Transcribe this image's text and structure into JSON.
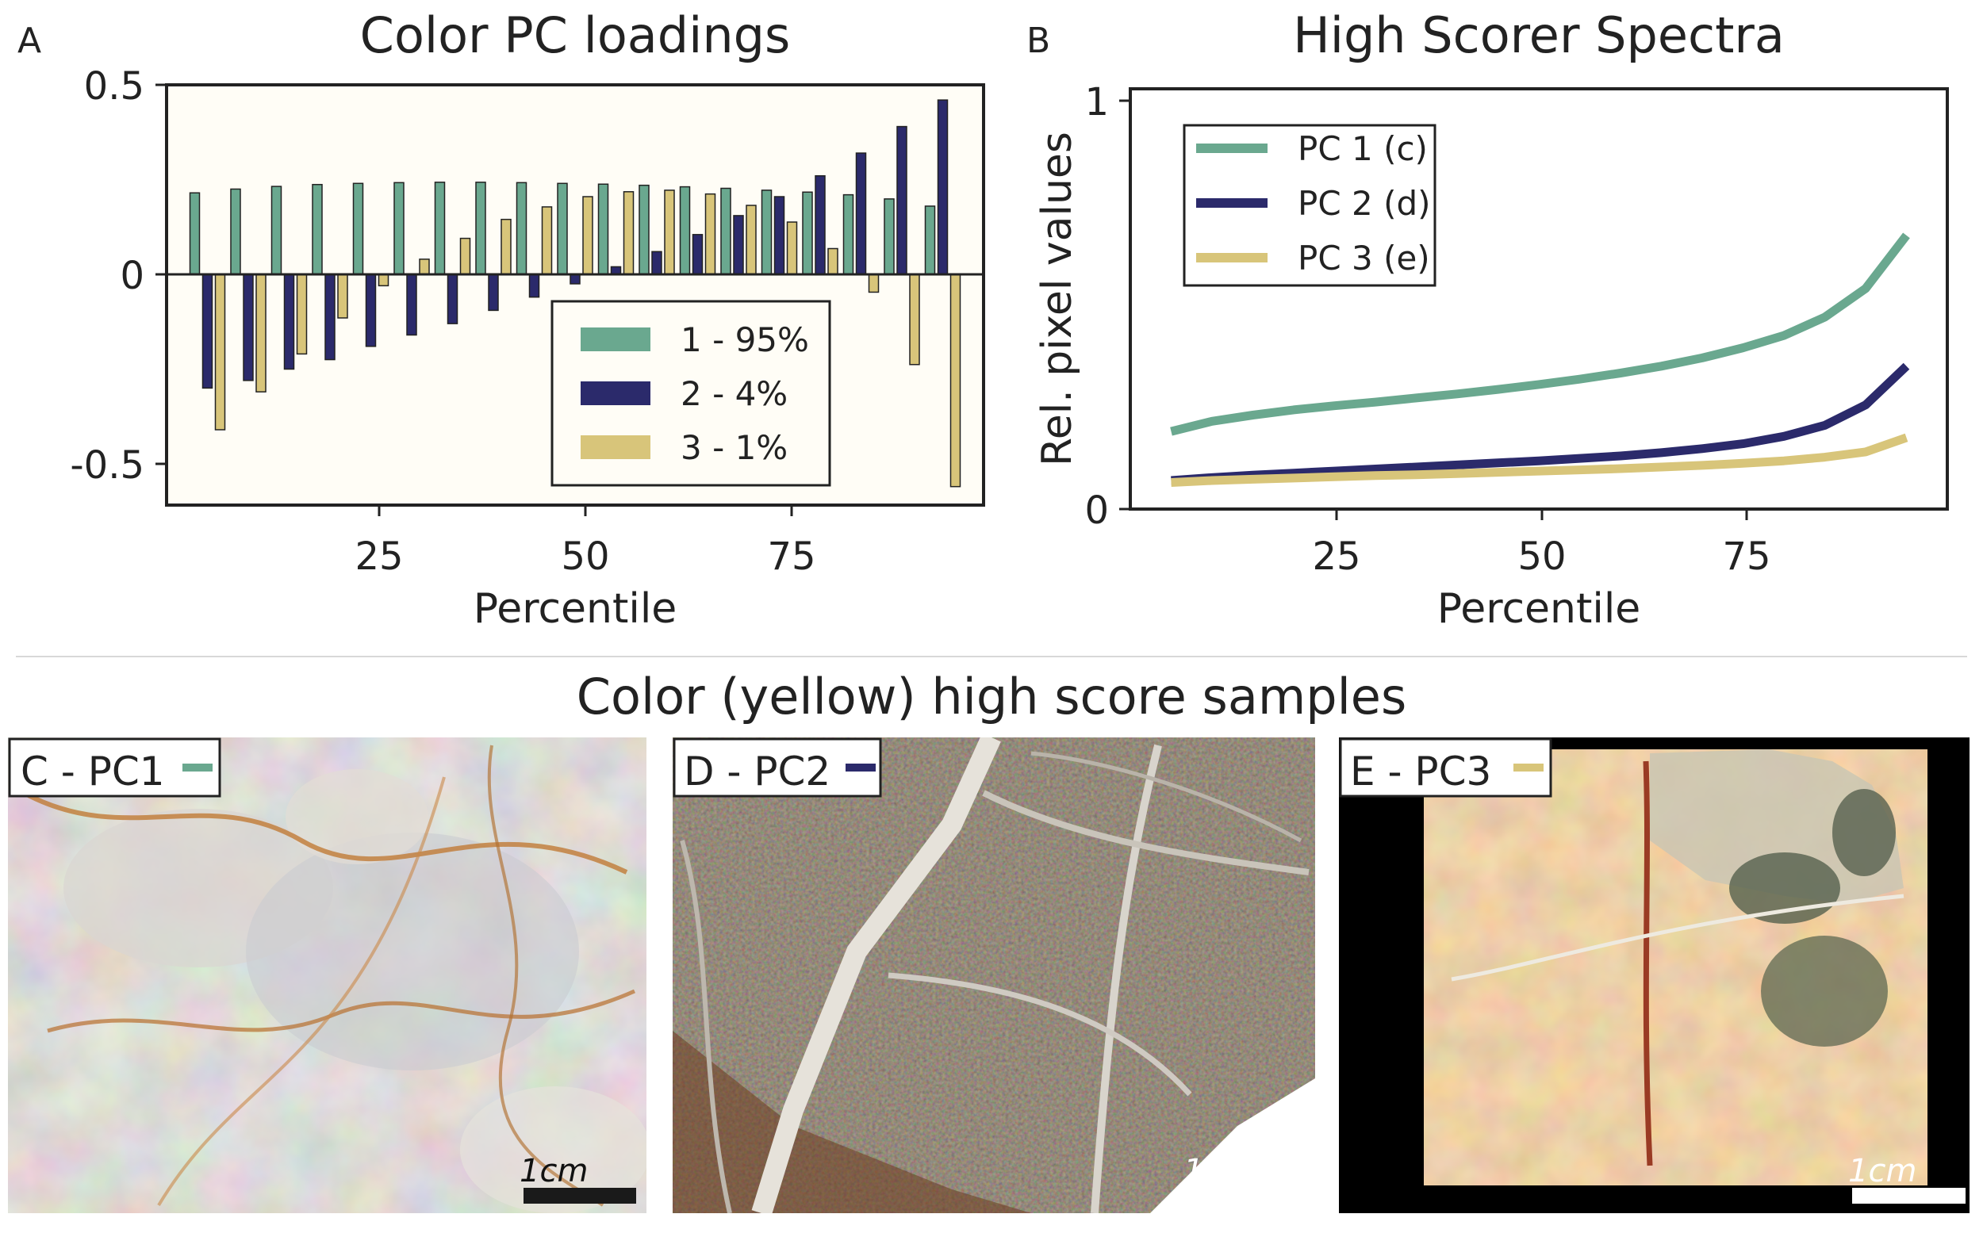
{
  "chart_data": [
    {
      "panel": "A",
      "type": "bar",
      "title": "Color PC loadings",
      "xlabel": "Percentile",
      "ylabel": "",
      "x": [
        5,
        10,
        15,
        20,
        25,
        30,
        35,
        40,
        45,
        50,
        55,
        60,
        65,
        70,
        75,
        80,
        85,
        90,
        95
      ],
      "xlim": [
        0,
        100
      ],
      "ylim": [
        -0.6,
        0.5
      ],
      "xticks": [
        "25",
        "50",
        "75"
      ],
      "yticks": [
        "0.5",
        "0",
        "-0.5"
      ],
      "legend_position": "lower-right",
      "series": [
        {
          "name": "1 - 95%",
          "color": "#6aa88f",
          "values": [
            0.215,
            0.225,
            0.232,
            0.237,
            0.24,
            0.242,
            0.243,
            0.243,
            0.242,
            0.24,
            0.238,
            0.235,
            0.231,
            0.227,
            0.222,
            0.217,
            0.21,
            0.199,
            0.18
          ]
        },
        {
          "name": "2 - 4%",
          "color": "#2b2a6b",
          "values": [
            -0.3,
            -0.28,
            -0.25,
            -0.225,
            -0.19,
            -0.16,
            -0.13,
            -0.095,
            -0.06,
            -0.025,
            0.02,
            0.06,
            0.105,
            0.155,
            0.205,
            0.26,
            0.32,
            0.39,
            0.46
          ]
        },
        {
          "name": "3 - 1%",
          "color": "#d8c57a",
          "values": [
            -0.41,
            -0.31,
            -0.21,
            -0.115,
            -0.03,
            0.04,
            0.095,
            0.145,
            0.178,
            0.205,
            0.218,
            0.222,
            0.212,
            0.182,
            0.138,
            0.068,
            -0.047,
            -0.238,
            -0.56
          ]
        }
      ]
    },
    {
      "panel": "B",
      "type": "line",
      "title": "High Scorer Spectra",
      "xlabel": "Percentile",
      "ylabel": "Rel. pixel values",
      "x": [
        5,
        10,
        15,
        20,
        25,
        30,
        35,
        40,
        45,
        50,
        55,
        60,
        65,
        70,
        75,
        80,
        85,
        90,
        95
      ],
      "xlim": [
        0,
        100
      ],
      "ylim": [
        0,
        1
      ],
      "xticks": [
        "25",
        "50",
        "75"
      ],
      "yticks": [
        "1",
        "0"
      ],
      "legend_position": "top-left",
      "series": [
        {
          "name": "PC 1 (c)",
          "color": "#6aa88f",
          "values": [
            0.19,
            0.215,
            0.23,
            0.243,
            0.253,
            0.262,
            0.272,
            0.282,
            0.293,
            0.305,
            0.318,
            0.333,
            0.35,
            0.37,
            0.395,
            0.425,
            0.47,
            0.54,
            0.67
          ]
        },
        {
          "name": "PC 2 (d)",
          "color": "#2b2a6b",
          "values": [
            0.07,
            0.077,
            0.083,
            0.088,
            0.093,
            0.098,
            0.103,
            0.108,
            0.113,
            0.118,
            0.124,
            0.13,
            0.138,
            0.148,
            0.16,
            0.178,
            0.205,
            0.255,
            0.35
          ]
        },
        {
          "name": "PC 3 (e)",
          "color": "#d8c57a",
          "values": [
            0.065,
            0.07,
            0.073,
            0.076,
            0.079,
            0.082,
            0.084,
            0.087,
            0.09,
            0.093,
            0.096,
            0.099,
            0.103,
            0.107,
            0.112,
            0.118,
            0.127,
            0.14,
            0.175
          ]
        }
      ]
    }
  ],
  "samples": {
    "section_title": "Color (yellow) high score samples",
    "items": [
      {
        "label": "C - PC1",
        "color": "#6aa88f",
        "scale": "1cm"
      },
      {
        "label": "D - PC2",
        "color": "#2b2a6b",
        "scale": "1cm"
      },
      {
        "label": "E - PC3",
        "color": "#d8c57a",
        "scale": "1cm"
      }
    ]
  },
  "panel_letters": [
    "A",
    "B"
  ]
}
